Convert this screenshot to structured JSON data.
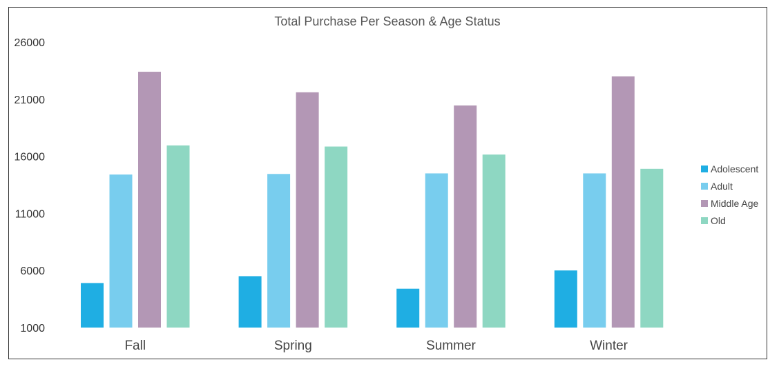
{
  "chart_data": {
    "type": "bar",
    "title": "Total Purchase Per Season & Age Status",
    "xlabel": "",
    "ylabel": "",
    "categories": [
      "Fall",
      "Spring",
      "Summer",
      "Winter"
    ],
    "ylim": [
      1000,
      26000
    ],
    "yticks": [
      "1000",
      "6000",
      "11000",
      "16000",
      "21000",
      "26000"
    ],
    "grid": false,
    "legend_position": "right",
    "series": [
      {
        "name": "Adolescent",
        "color": "#1FAEE3",
        "values": [
          4900,
          5500,
          4400,
          6000
        ]
      },
      {
        "name": "Adult",
        "color": "#78CDEE",
        "values": [
          14400,
          14450,
          14500,
          14500
        ]
      },
      {
        "name": "Middle Age",
        "color": "#B397B5",
        "values": [
          23400,
          21600,
          20450,
          23000
        ]
      },
      {
        "name": "Old",
        "color": "#8ED7C2",
        "values": [
          16950,
          16850,
          16150,
          14900
        ]
      }
    ]
  }
}
